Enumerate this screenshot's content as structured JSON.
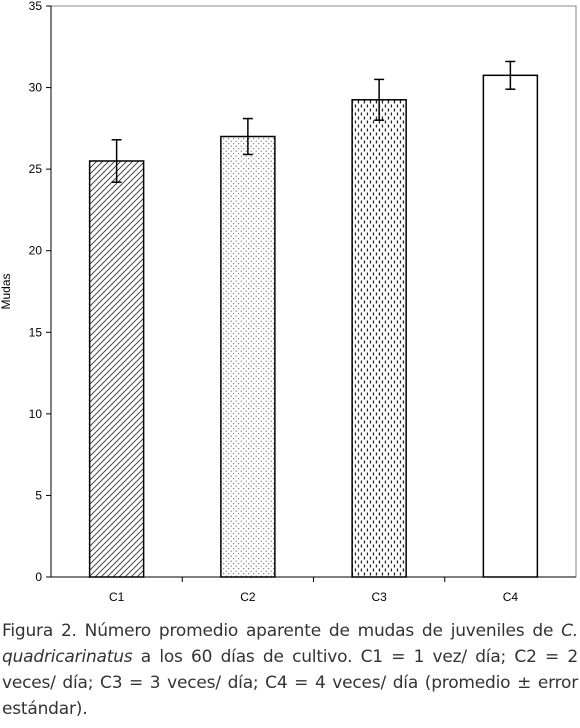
{
  "chart_data": {
    "type": "bar",
    "categories": [
      "C1",
      "C2",
      "C3",
      "C4"
    ],
    "values": [
      25.5,
      27.0,
      29.25,
      30.75
    ],
    "error": [
      1.3,
      1.1,
      1.25,
      0.85
    ],
    "patterns": [
      "diagonal-hatch",
      "dots",
      "dashes",
      "none"
    ],
    "ylabel": "Mudas",
    "xlabel": "",
    "ylim": [
      0,
      35
    ],
    "yticks": [
      "0",
      "5",
      "10",
      "15",
      "20",
      "25",
      "30",
      "35"
    ],
    "grid": false,
    "legend": "none"
  },
  "caption": {
    "part1": "Figura 2. Número promedio aparente de mudas de juveniles de ",
    "species_genus": "C. quadricarinatus",
    "part2": " a los 60 días de cultivo. C1 = 1 vez/ día; C2 = 2 veces/ día; C3 = 3 veces/ día; C4 = 4 veces/ día (promedio ± error estándar)."
  }
}
